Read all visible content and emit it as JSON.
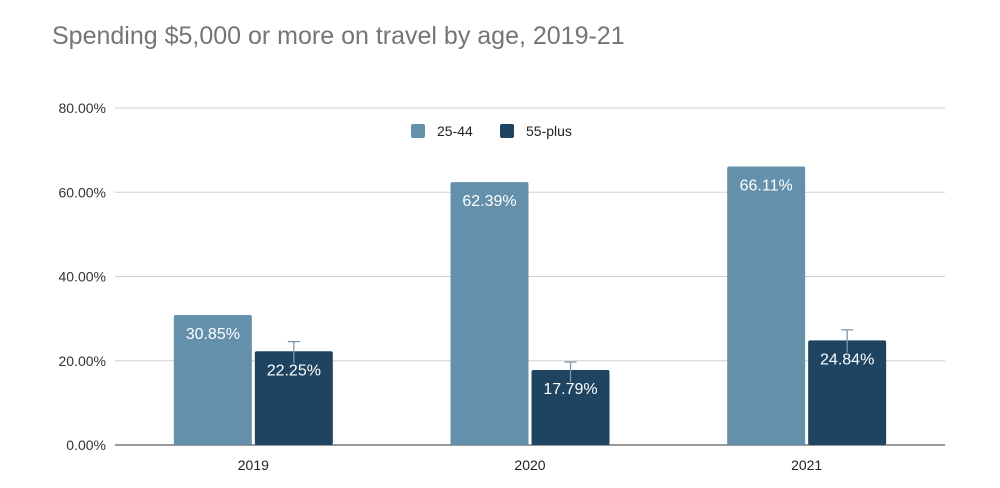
{
  "chart_data": {
    "type": "bar",
    "title": "Spending $5,000 or more on travel by age, 2019-21",
    "xlabel": "",
    "ylabel": "",
    "categories": [
      "2019",
      "2020",
      "2021"
    ],
    "series": [
      {
        "name": "25-44",
        "color": "#6590ab",
        "values": [
          30.85,
          62.39,
          66.11
        ],
        "labels": [
          "30.85%",
          "62.39%",
          "66.11%"
        ]
      },
      {
        "name": "55-plus",
        "color": "#1e4461",
        "values": [
          22.25,
          17.79,
          24.84
        ],
        "labels": [
          "22.25%",
          "17.79%",
          "24.84%"
        ],
        "error_upper": [
          2.3,
          1.9,
          2.5
        ]
      }
    ],
    "ylim": [
      0,
      80
    ],
    "yticks": [
      0,
      20,
      40,
      60,
      80
    ],
    "ytick_labels": [
      "0.00%",
      "20.00%",
      "40.00%",
      "60.00%",
      "80.00%"
    ],
    "grid": true,
    "legend_position": "top-center"
  }
}
